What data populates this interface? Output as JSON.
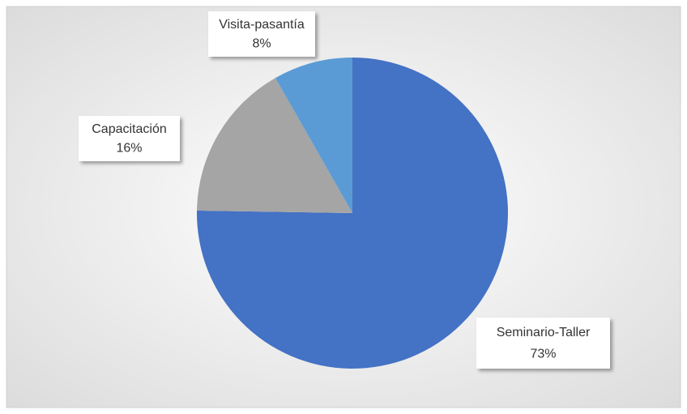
{
  "chart_data": {
    "type": "pie",
    "categories": [
      "Seminario-Taller",
      "Capacitación",
      "Visita-pasantía"
    ],
    "values": [
      73,
      16,
      8
    ],
    "value_labels": [
      "73%",
      "16%",
      "8%"
    ],
    "colors": [
      "#4472c4",
      "#a5a5a5",
      "#5b9bd5"
    ]
  }
}
